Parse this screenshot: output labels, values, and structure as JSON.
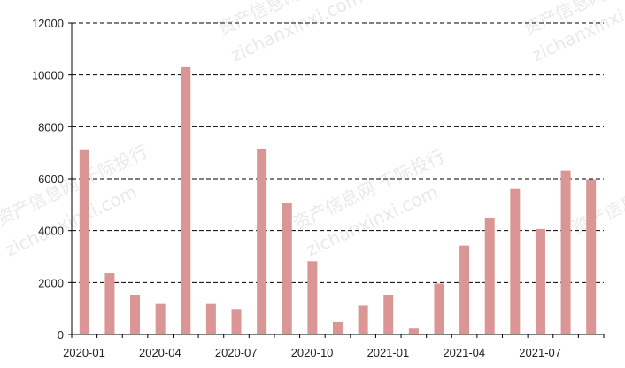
{
  "chart_data": {
    "type": "bar",
    "categories": [
      "2020-01",
      "2020-02",
      "2020-03",
      "2020-04",
      "2020-05",
      "2020-06",
      "2020-07",
      "2020-08",
      "2020-09",
      "2020-10",
      "2020-11",
      "2020-12",
      "2021-01",
      "2021-02",
      "2021-03",
      "2021-04",
      "2021-05",
      "2021-06",
      "2021-07",
      "2021-08",
      "2021-09"
    ],
    "values": [
      7100,
      2350,
      1520,
      1170,
      10300,
      1170,
      980,
      7150,
      5080,
      2820,
      480,
      1110,
      1510,
      230,
      1960,
      3420,
      4500,
      5600,
      4060,
      6320,
      5980
    ],
    "x_tick_labels": [
      "2020-01",
      "2020-04",
      "2020-07",
      "2020-10",
      "2021-01",
      "2021-04",
      "2021-07"
    ],
    "y_ticks": [
      0,
      2000,
      4000,
      6000,
      8000,
      10000,
      12000
    ],
    "ylim": [
      0,
      12000
    ],
    "grid": true,
    "bar_color": "#d99694",
    "title": "",
    "xlabel": "",
    "ylabel": ""
  },
  "watermark": {
    "cn": "资产信息网 千际投行",
    "en": "zichanxinxi.com"
  }
}
